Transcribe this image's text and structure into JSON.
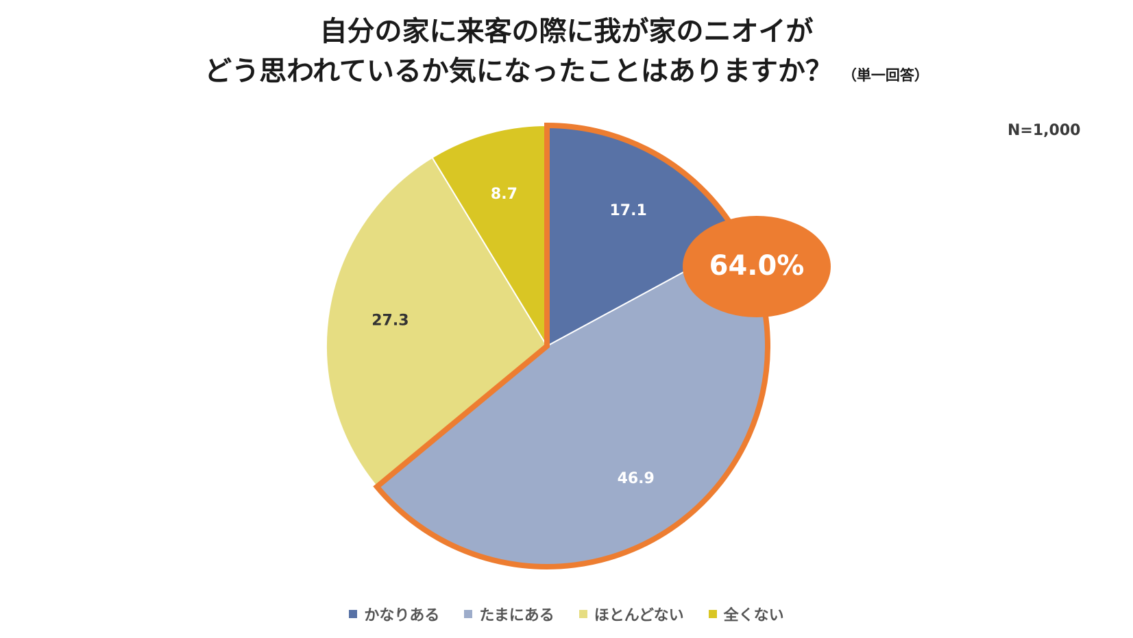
{
  "chart_data": {
    "type": "pie",
    "title_line1": "自分の家に来客の際に我が家のニオイが",
    "title_line2": "どう思われているか気になったことはありますか？",
    "title_note": "（単一回答）",
    "sample_size": "N=1,000",
    "callout": "64.0%",
    "categories": [
      "かなりある",
      "たまにある",
      "ほとんどない",
      "全くない"
    ],
    "values": [
      17.1,
      46.9,
      27.3,
      8.7
    ],
    "value_labels": [
      "17.1",
      "46.9",
      "27.3",
      "8.7"
    ],
    "colors": [
      "#5872A6",
      "#9DACCA",
      "#E6DD82",
      "#D9C624"
    ],
    "label_colors": [
      "#ffffff",
      "#ffffff",
      "#333333",
      "#ffffff"
    ],
    "highlight_color": "#ED7D31",
    "legend_placement": "bottom"
  }
}
